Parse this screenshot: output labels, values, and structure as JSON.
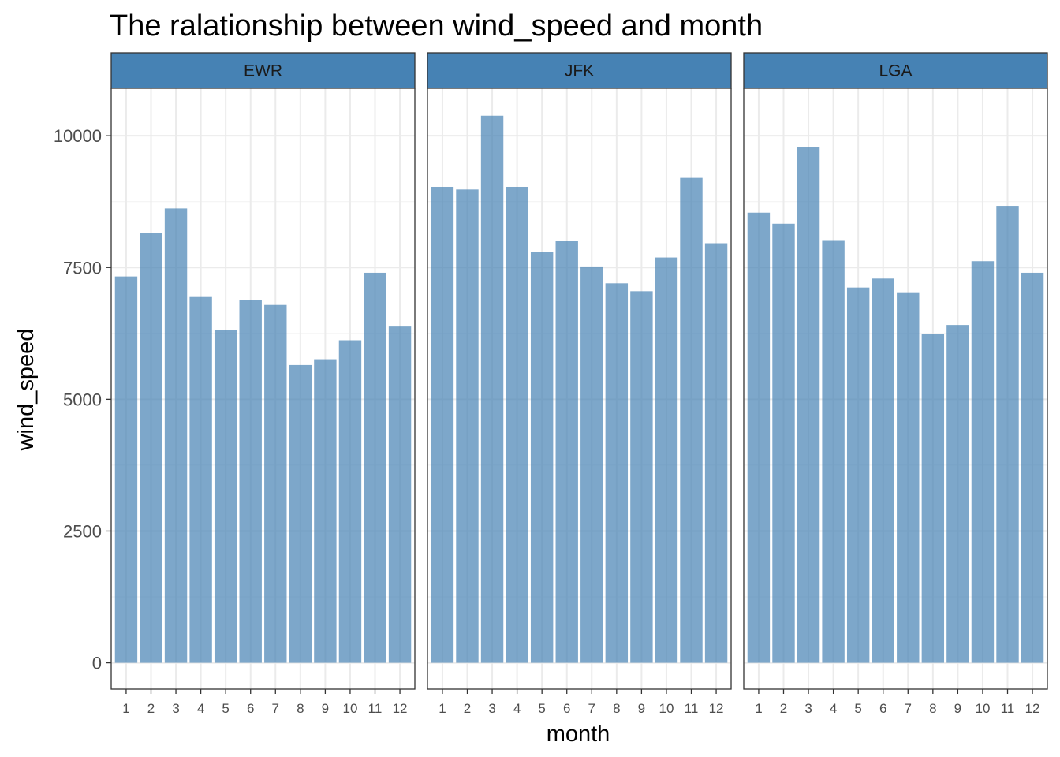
{
  "chart_data": {
    "type": "bar",
    "title": "The ralationship between wind_speed and month",
    "xlabel": "month",
    "ylabel": "wind_speed",
    "categories": [
      "1",
      "2",
      "3",
      "4",
      "5",
      "6",
      "7",
      "8",
      "9",
      "10",
      "11",
      "12"
    ],
    "ylim": [
      -500,
      10900
    ],
    "yticks": [
      "0",
      "2500",
      "5000",
      "7500",
      "10000"
    ],
    "grid": true,
    "facet_strip_color": "#4682B4",
    "bar_color": "#4682B4",
    "bar_opacity": 0.7,
    "series": [
      {
        "name": "EWR",
        "values": [
          7330,
          8160,
          8620,
          6940,
          6320,
          6880,
          6790,
          5650,
          5760,
          6120,
          7400,
          6380
        ]
      },
      {
        "name": "JFK",
        "values": [
          9030,
          8980,
          10380,
          9030,
          7790,
          8000,
          7520,
          7200,
          7050,
          7690,
          9200,
          7960
        ]
      },
      {
        "name": "LGA",
        "values": [
          8540,
          8330,
          9780,
          8020,
          7120,
          7290,
          7030,
          6240,
          6410,
          7620,
          8670,
          7400
        ]
      }
    ]
  }
}
